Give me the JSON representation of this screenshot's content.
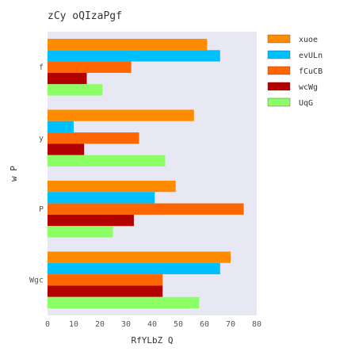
{
  "chart_data": {
    "type": "bar",
    "orientation": "horizontal",
    "title": "zCy oQIzaPgf",
    "xlabel": "RfYLbZ Q",
    "ylabel": "w P",
    "categories": [
      "f",
      "y",
      "P",
      "Wgc"
    ],
    "xlim": [
      0,
      80
    ],
    "xticks": [
      0,
      10,
      20,
      30,
      40,
      50,
      60,
      70,
      80
    ],
    "grid": false,
    "legend_position": "top-right",
    "series": [
      {
        "name": "xuoe",
        "color": "#ff8c00",
        "values": [
          61,
          56,
          49,
          70
        ]
      },
      {
        "name": "evULn",
        "color": "#00bfff",
        "values": [
          66,
          10,
          41,
          66
        ]
      },
      {
        "name": "fCuCB",
        "color": "#ff6600",
        "values": [
          32,
          35,
          75,
          44
        ]
      },
      {
        "name": "wcWg",
        "color": "#b30000",
        "values": [
          15,
          14,
          33,
          44
        ]
      },
      {
        "name": "UqG",
        "color": "#8cff66",
        "values": [
          21,
          45,
          25,
          58
        ]
      }
    ]
  }
}
